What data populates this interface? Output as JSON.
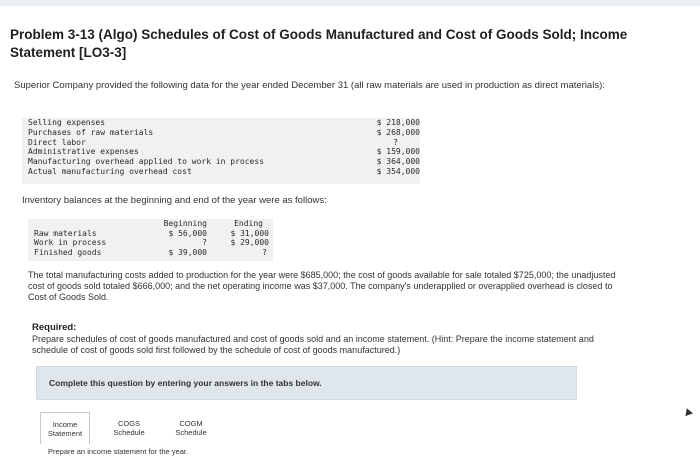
{
  "title": "Problem 3-13 (Algo) Schedules of Cost of Goods Manufactured and Cost of Goods Sold; Income Statement [LO3-3]",
  "intro": "Superior Company provided the following data for the year ended December 31 (all raw materials are used in production as direct materials):",
  "data_rows": [
    {
      "label": "Selling expenses",
      "value": "$ 218,000"
    },
    {
      "label": "Purchases of raw materials",
      "value": "$ 268,000"
    },
    {
      "label": "Direct labor",
      "value": "?"
    },
    {
      "label": "Administrative expenses",
      "value": "$ 159,000"
    },
    {
      "label": "Manufacturing overhead applied to work in process",
      "value": "$ 364,000"
    },
    {
      "label": "Actual manufacturing overhead cost",
      "value": "$ 354,000"
    }
  ],
  "inventory_intro": "Inventory balances at the beginning and end of the year were as follows:",
  "inventory": {
    "headers": {
      "beginning": "Beginning",
      "ending": "Ending"
    },
    "rows": [
      {
        "label": "Raw materials",
        "beginning": "$ 56,000",
        "ending": "$ 31,000"
      },
      {
        "label": "Work in process",
        "beginning": "?",
        "ending": "$ 29,000"
      },
      {
        "label": "Finished goods",
        "beginning": "$ 39,000",
        "ending": "?"
      }
    ]
  },
  "paragraph": "The total manufacturing costs added to production for the year were $685,000; the cost of goods available for sale totaled $725,000; the unadjusted cost of goods sold totaled $666,000; and the net operating income was $37,000. The company's underapplied or overapplied overhead is closed to Cost of Goods Sold.",
  "required": {
    "heading": "Required:",
    "text": "Prepare schedules of cost of goods manufactured and cost of goods sold and an income statement. (Hint: Prepare the income statement and schedule of cost of goods sold first followed by the schedule of cost of goods manufactured.)"
  },
  "banner": "Complete this question by entering your answers in the tabs below.",
  "tabs": [
    {
      "line1": "Income",
      "line2": "Statement"
    },
    {
      "line1": "COGS",
      "line2": "Schedule"
    },
    {
      "line1": "COGM",
      "line2": "Schedule"
    }
  ],
  "instruction": "Prepare an income statement for the year."
}
